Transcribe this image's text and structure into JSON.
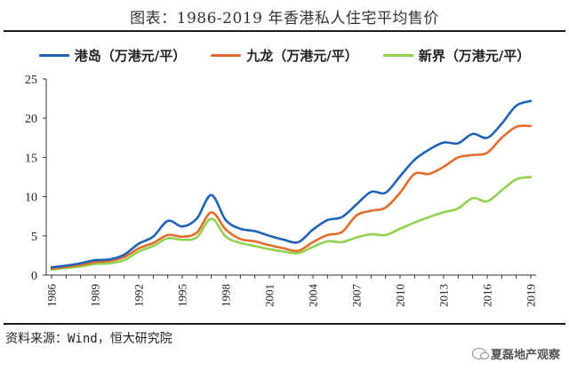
{
  "title": "图表：1986-2019 年香港私人住宅平均售价",
  "source": "资料来源：Wind，恒大研究院",
  "watermark": {
    "text": "夏磊地产观察",
    "icon": "wechat-icon"
  },
  "chart_data": {
    "type": "line",
    "legend_position": "top",
    "grid": false,
    "ylim": [
      0,
      25
    ],
    "xlim": [
      1986,
      2019
    ],
    "yticks": [
      0,
      5,
      10,
      15,
      20,
      25
    ],
    "xticks": [
      1986,
      1989,
      1992,
      1995,
      1998,
      2001,
      2004,
      2007,
      2010,
      2013,
      2016,
      2019
    ],
    "series": [
      {
        "name": "港岛（万港元/平）",
        "color": "#1f63b4",
        "points": [
          [
            1986,
            1.0
          ],
          [
            1987,
            1.2
          ],
          [
            1988,
            1.5
          ],
          [
            1989,
            1.9
          ],
          [
            1990,
            2.0
          ],
          [
            1991,
            2.6
          ],
          [
            1992,
            4.0
          ],
          [
            1993,
            4.9
          ],
          [
            1994,
            6.9
          ],
          [
            1995,
            6.2
          ],
          [
            1996,
            7.2
          ],
          [
            1997,
            10.2
          ],
          [
            1998,
            7.0
          ],
          [
            1999,
            5.9
          ],
          [
            2000,
            5.6
          ],
          [
            2001,
            5.0
          ],
          [
            2002,
            4.5
          ],
          [
            2003,
            4.2
          ],
          [
            2004,
            5.8
          ],
          [
            2005,
            7.0
          ],
          [
            2006,
            7.4
          ],
          [
            2007,
            9.0
          ],
          [
            2008,
            10.6
          ],
          [
            2009,
            10.5
          ],
          [
            2010,
            12.6
          ],
          [
            2011,
            14.7
          ],
          [
            2012,
            16.0
          ],
          [
            2013,
            16.9
          ],
          [
            2014,
            16.8
          ],
          [
            2015,
            18.0
          ],
          [
            2016,
            17.5
          ],
          [
            2017,
            19.3
          ],
          [
            2018,
            21.6
          ],
          [
            2019,
            22.2
          ]
        ]
      },
      {
        "name": "九龙（万港元/平）",
        "color": "#e36c2c",
        "points": [
          [
            1986,
            0.85
          ],
          [
            1987,
            1.05
          ],
          [
            1988,
            1.3
          ],
          [
            1989,
            1.65
          ],
          [
            1990,
            1.8
          ],
          [
            1991,
            2.3
          ],
          [
            1992,
            3.4
          ],
          [
            1993,
            4.1
          ],
          [
            1994,
            5.1
          ],
          [
            1995,
            4.9
          ],
          [
            1996,
            5.4
          ],
          [
            1997,
            8.0
          ],
          [
            1998,
            5.8
          ],
          [
            1999,
            4.6
          ],
          [
            2000,
            4.3
          ],
          [
            2001,
            3.8
          ],
          [
            2002,
            3.4
          ],
          [
            2003,
            3.1
          ],
          [
            2004,
            4.2
          ],
          [
            2005,
            5.1
          ],
          [
            2006,
            5.5
          ],
          [
            2007,
            7.6
          ],
          [
            2008,
            8.2
          ],
          [
            2009,
            8.6
          ],
          [
            2010,
            10.5
          ],
          [
            2011,
            12.9
          ],
          [
            2012,
            12.9
          ],
          [
            2013,
            13.8
          ],
          [
            2014,
            15.0
          ],
          [
            2015,
            15.3
          ],
          [
            2016,
            15.6
          ],
          [
            2017,
            17.5
          ],
          [
            2018,
            18.9
          ],
          [
            2019,
            19.0
          ]
        ]
      },
      {
        "name": "新界（万港元/平）",
        "color": "#92d050",
        "points": [
          [
            1986,
            0.7
          ],
          [
            1987,
            0.9
          ],
          [
            1988,
            1.1
          ],
          [
            1989,
            1.4
          ],
          [
            1990,
            1.5
          ],
          [
            1991,
            1.9
          ],
          [
            1992,
            3.0
          ],
          [
            1993,
            3.7
          ],
          [
            1994,
            4.7
          ],
          [
            1995,
            4.5
          ],
          [
            1996,
            4.8
          ],
          [
            1997,
            7.2
          ],
          [
            1998,
            4.9
          ],
          [
            1999,
            4.1
          ],
          [
            2000,
            3.7
          ],
          [
            2001,
            3.3
          ],
          [
            2002,
            3.0
          ],
          [
            2003,
            2.8
          ],
          [
            2004,
            3.6
          ],
          [
            2005,
            4.3
          ],
          [
            2006,
            4.2
          ],
          [
            2007,
            4.8
          ],
          [
            2008,
            5.2
          ],
          [
            2009,
            5.1
          ],
          [
            2010,
            5.9
          ],
          [
            2011,
            6.7
          ],
          [
            2012,
            7.4
          ],
          [
            2013,
            8.0
          ],
          [
            2014,
            8.5
          ],
          [
            2015,
            9.8
          ],
          [
            2016,
            9.4
          ],
          [
            2017,
            10.8
          ],
          [
            2018,
            12.2
          ],
          [
            2019,
            12.5
          ]
        ]
      }
    ]
  }
}
